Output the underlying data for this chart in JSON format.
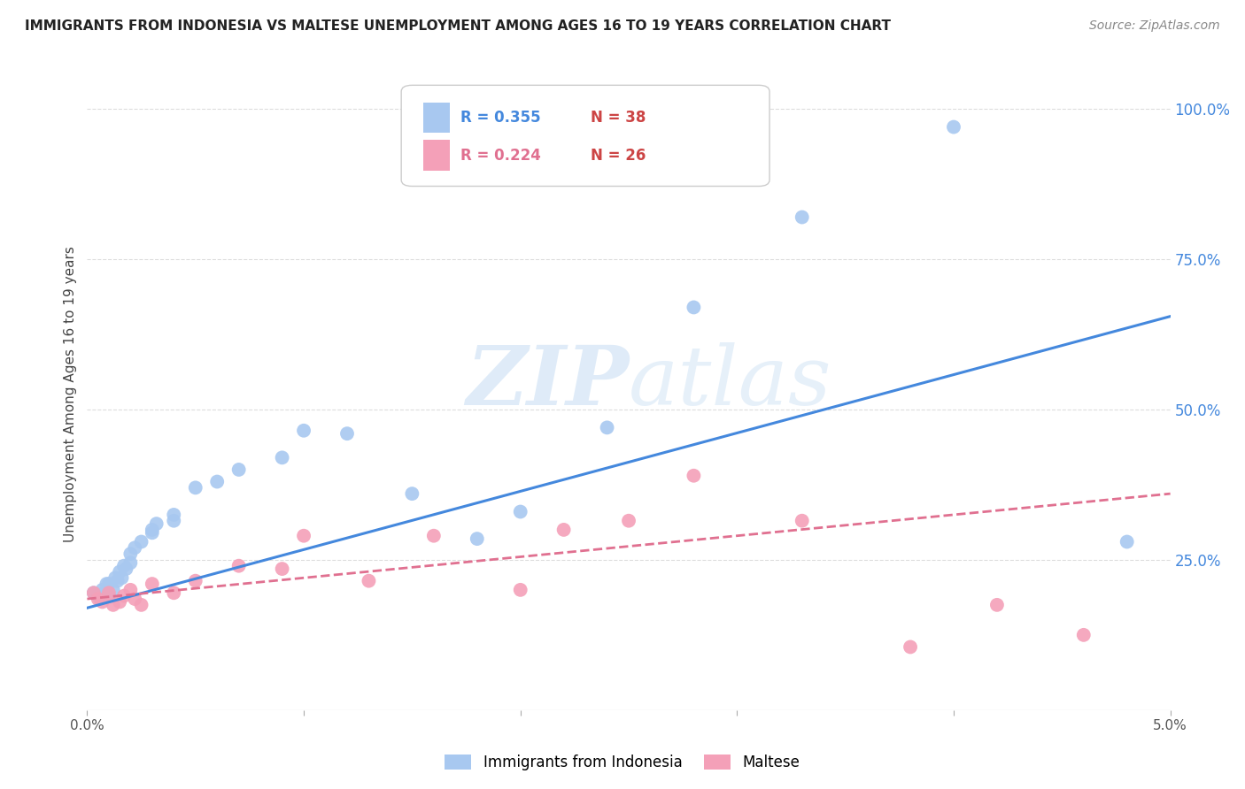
{
  "title": "IMMIGRANTS FROM INDONESIA VS MALTESE UNEMPLOYMENT AMONG AGES 16 TO 19 YEARS CORRELATION CHART",
  "source": "Source: ZipAtlas.com",
  "ylabel": "Unemployment Among Ages 16 to 19 years",
  "right_yticks": [
    "100.0%",
    "75.0%",
    "50.0%",
    "25.0%"
  ],
  "right_ytick_vals": [
    1.0,
    0.75,
    0.5,
    0.25
  ],
  "legend_blue_r": "R = 0.355",
  "legend_blue_n": "N = 38",
  "legend_pink_r": "R = 0.224",
  "legend_pink_n": "N = 26",
  "blue_color": "#a8c8f0",
  "pink_color": "#f4a0b8",
  "blue_line_color": "#4488dd",
  "pink_line_color": "#e07090",
  "blue_scatter_x": [
    0.0003,
    0.0005,
    0.0006,
    0.0007,
    0.0008,
    0.0009,
    0.001,
    0.001,
    0.0012,
    0.0013,
    0.0014,
    0.0015,
    0.0016,
    0.0017,
    0.0018,
    0.002,
    0.002,
    0.0022,
    0.0025,
    0.003,
    0.003,
    0.0032,
    0.004,
    0.004,
    0.005,
    0.006,
    0.007,
    0.009,
    0.01,
    0.012,
    0.015,
    0.018,
    0.02,
    0.024,
    0.028,
    0.033,
    0.04,
    0.048
  ],
  "blue_scatter_y": [
    0.195,
    0.19,
    0.185,
    0.2,
    0.195,
    0.21,
    0.19,
    0.21,
    0.2,
    0.22,
    0.215,
    0.23,
    0.22,
    0.24,
    0.235,
    0.245,
    0.26,
    0.27,
    0.28,
    0.3,
    0.295,
    0.31,
    0.315,
    0.325,
    0.37,
    0.38,
    0.4,
    0.42,
    0.465,
    0.46,
    0.36,
    0.285,
    0.33,
    0.47,
    0.67,
    0.82,
    0.97,
    0.28
  ],
  "pink_scatter_x": [
    0.0003,
    0.0005,
    0.0007,
    0.001,
    0.0012,
    0.0015,
    0.0017,
    0.002,
    0.0022,
    0.0025,
    0.003,
    0.004,
    0.005,
    0.007,
    0.009,
    0.01,
    0.013,
    0.016,
    0.02,
    0.022,
    0.025,
    0.028,
    0.033,
    0.038,
    0.042,
    0.046
  ],
  "pink_scatter_y": [
    0.195,
    0.185,
    0.18,
    0.195,
    0.175,
    0.18,
    0.19,
    0.2,
    0.185,
    0.175,
    0.21,
    0.195,
    0.215,
    0.24,
    0.235,
    0.29,
    0.215,
    0.29,
    0.2,
    0.3,
    0.315,
    0.39,
    0.315,
    0.105,
    0.175,
    0.125
  ],
  "blue_line_x": [
    0.0,
    0.05
  ],
  "blue_line_y": [
    0.17,
    0.655
  ],
  "pink_line_x": [
    0.0,
    0.05
  ],
  "pink_line_y": [
    0.185,
    0.36
  ],
  "xmin": 0.0,
  "xmax": 0.05,
  "ymin": 0.0,
  "ymax": 1.05,
  "grid_color": "#dddddd",
  "title_fontsize": 11,
  "source_fontsize": 10
}
